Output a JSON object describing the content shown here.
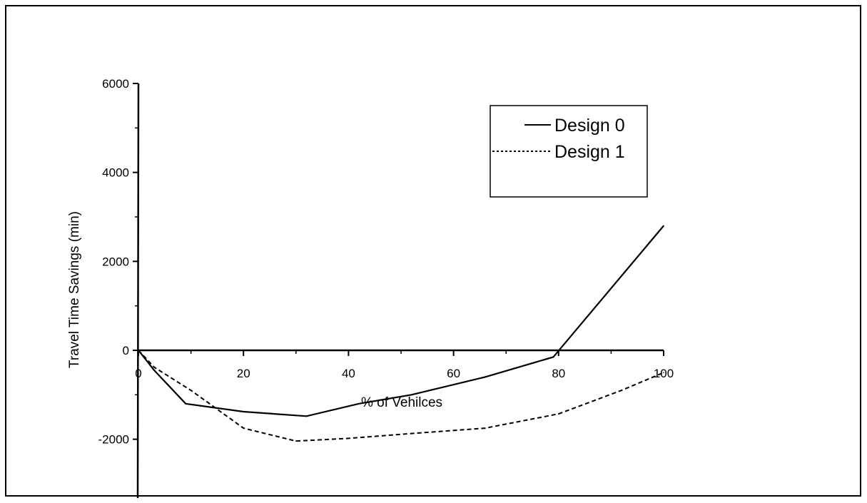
{
  "chart_data": {
    "type": "line",
    "title": "",
    "xlabel": "% of Vehilces",
    "ylabel": "Travel Time Savings (min)",
    "xlim": [
      0,
      100
    ],
    "ylim": [
      -3000,
      6000
    ],
    "x_ticks": [
      "0",
      "20",
      "40",
      "60",
      "80",
      "100"
    ],
    "y_ticks": [
      "6000",
      "4000",
      "2000",
      "0",
      "-2000"
    ],
    "grid": false,
    "legend_position": "top-right",
    "series": [
      {
        "name": "Design 0",
        "style": "solid",
        "color": "#000000",
        "points": [
          [
            0,
            0
          ],
          [
            3,
            -450
          ],
          [
            9,
            -1200
          ],
          [
            20,
            -1380
          ],
          [
            32,
            -1480
          ],
          [
            42,
            -1200
          ],
          [
            52,
            -1000
          ],
          [
            66,
            -600
          ],
          [
            79,
            -150
          ],
          [
            100,
            2800
          ]
        ]
      },
      {
        "name": "Design 1",
        "style": "dotted",
        "color": "#000000",
        "points": [
          [
            0,
            0
          ],
          [
            3,
            -380
          ],
          [
            10,
            -900
          ],
          [
            20,
            -1750
          ],
          [
            30,
            -2040
          ],
          [
            40,
            -1980
          ],
          [
            52,
            -1870
          ],
          [
            66,
            -1750
          ],
          [
            80,
            -1430
          ],
          [
            92,
            -900
          ],
          [
            100,
            -500
          ]
        ]
      }
    ]
  }
}
